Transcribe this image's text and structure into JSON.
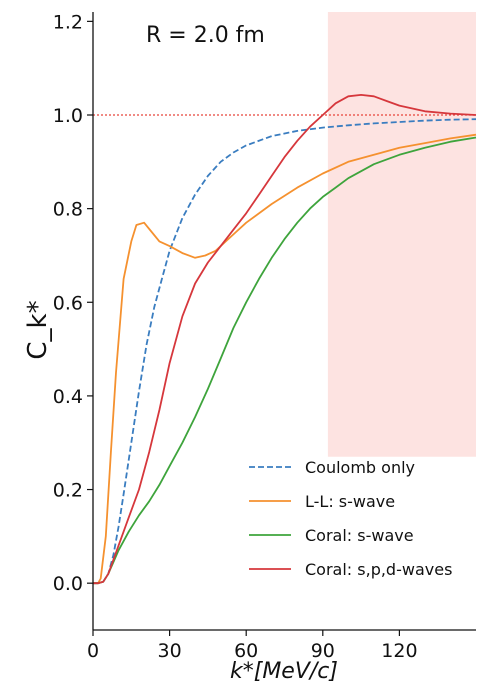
{
  "chart_data": {
    "type": "line",
    "annotation": "R = 2.0 fm",
    "xlabel": "k*[MeV/c]",
    "ylabel": "C_k*",
    "xlim": [
      0,
      150
    ],
    "ylim": [
      -0.1,
      1.22
    ],
    "xticks": [
      0,
      30,
      60,
      90,
      120
    ],
    "yticks": [
      0.0,
      0.2,
      0.4,
      0.6,
      0.8,
      1.0,
      1.2
    ],
    "xtick_labels": [
      "0",
      "30",
      "60",
      "90",
      "120"
    ],
    "ytick_labels": [
      "0.0",
      "0.2",
      "0.4",
      "0.6",
      "0.8",
      "1.0",
      "1.2"
    ],
    "reference_line": {
      "y": 1.0,
      "color": "#e8433a",
      "style": "dotted"
    },
    "shaded_region": {
      "x": [
        92,
        150
      ],
      "y": [
        0.27,
        1.22
      ],
      "color": "#fde3e1"
    },
    "legend_position": "lower-right",
    "series": [
      {
        "name": "Coulomb only",
        "color": "#3a7dc0",
        "style": "dashed",
        "x": [
          0,
          2,
          4,
          6,
          8,
          10,
          12,
          15,
          18,
          21,
          24,
          27,
          30,
          35,
          40,
          45,
          50,
          55,
          60,
          70,
          80,
          90,
          100,
          110,
          120,
          130,
          140,
          150
        ],
        "y": [
          0,
          0,
          0.003,
          0.02,
          0.06,
          0.12,
          0.19,
          0.3,
          0.41,
          0.51,
          0.59,
          0.65,
          0.71,
          0.78,
          0.83,
          0.87,
          0.9,
          0.92,
          0.935,
          0.955,
          0.966,
          0.973,
          0.978,
          0.982,
          0.985,
          0.988,
          0.99,
          0.991
        ]
      },
      {
        "name": "L-L: s-wave",
        "color": "#f5912f",
        "style": "solid",
        "x": [
          0,
          2,
          3,
          5,
          7,
          9,
          12,
          15,
          17,
          20,
          23,
          26,
          30,
          35,
          40,
          44,
          48,
          52,
          56,
          60,
          70,
          80,
          90,
          100,
          110,
          120,
          130,
          140,
          150
        ],
        "y": [
          0,
          0,
          0.01,
          0.1,
          0.28,
          0.45,
          0.65,
          0.73,
          0.765,
          0.77,
          0.75,
          0.73,
          0.72,
          0.705,
          0.695,
          0.7,
          0.71,
          0.73,
          0.75,
          0.77,
          0.81,
          0.845,
          0.875,
          0.9,
          0.915,
          0.93,
          0.94,
          0.95,
          0.958
        ]
      },
      {
        "name": "Coral: s-wave",
        "color": "#3ea43c",
        "style": "solid",
        "x": [
          0,
          2,
          4,
          6,
          8,
          10,
          14,
          18,
          22,
          26,
          30,
          35,
          40,
          45,
          50,
          55,
          60,
          65,
          70,
          75,
          80,
          85,
          90,
          95,
          100,
          110,
          120,
          130,
          140,
          150
        ],
        "y": [
          0,
          0,
          0.003,
          0.02,
          0.045,
          0.07,
          0.11,
          0.145,
          0.175,
          0.21,
          0.25,
          0.3,
          0.355,
          0.415,
          0.48,
          0.545,
          0.6,
          0.65,
          0.695,
          0.735,
          0.77,
          0.8,
          0.825,
          0.845,
          0.865,
          0.895,
          0.915,
          0.93,
          0.943,
          0.952
        ]
      },
      {
        "name": "Coral: s,p,d-waves",
        "color": "#d6373c",
        "style": "solid",
        "x": [
          0,
          2,
          4,
          6,
          8,
          10,
          14,
          18,
          22,
          26,
          30,
          35,
          40,
          45,
          50,
          55,
          60,
          65,
          70,
          75,
          80,
          85,
          90,
          95,
          100,
          105,
          110,
          115,
          120,
          130,
          140,
          150
        ],
        "y": [
          0,
          0,
          0.003,
          0.02,
          0.05,
          0.08,
          0.14,
          0.2,
          0.28,
          0.37,
          0.47,
          0.57,
          0.64,
          0.685,
          0.72,
          0.755,
          0.79,
          0.83,
          0.87,
          0.91,
          0.945,
          0.975,
          1.0,
          1.025,
          1.04,
          1.043,
          1.04,
          1.03,
          1.02,
          1.008,
          1.003,
          1.0
        ]
      }
    ]
  }
}
